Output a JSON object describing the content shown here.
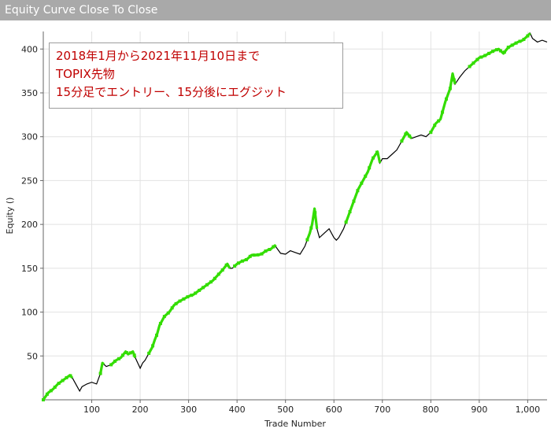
{
  "window": {
    "title": "Equity Curve Close To Close"
  },
  "chart_data": {
    "type": "line",
    "title": "",
    "xlabel": "Trade Number",
    "ylabel": "Equity ()",
    "xlim": [
      0,
      1040
    ],
    "ylim": [
      0,
      420
    ],
    "x_ticks": [
      100,
      200,
      300,
      400,
      500,
      600,
      700,
      800,
      900,
      1000
    ],
    "x_tick_labels": [
      "100",
      "200",
      "300",
      "400",
      "500",
      "600",
      "700",
      "800",
      "900",
      "1,000"
    ],
    "y_ticks": [
      50,
      100,
      150,
      200,
      250,
      300,
      350,
      400
    ],
    "y_tick_labels": [
      "50",
      "100",
      "150",
      "200",
      "250",
      "300",
      "350",
      "400"
    ],
    "grid": true,
    "series_color": "#000000",
    "highlight_color": "#33dd00",
    "series": [
      {
        "values": [
          [
            0,
            0
          ],
          [
            10,
            8
          ],
          [
            20,
            12
          ],
          [
            30,
            18
          ],
          [
            40,
            22
          ],
          [
            55,
            28
          ],
          [
            60,
            25
          ],
          [
            65,
            20
          ],
          [
            70,
            15
          ],
          [
            75,
            10
          ],
          [
            80,
            15
          ],
          [
            90,
            18
          ],
          [
            100,
            20
          ],
          [
            110,
            18
          ],
          [
            118,
            30
          ],
          [
            122,
            42
          ],
          [
            130,
            38
          ],
          [
            140,
            40
          ],
          [
            150,
            45
          ],
          [
            160,
            48
          ],
          [
            170,
            55
          ],
          [
            175,
            52
          ],
          [
            185,
            55
          ],
          [
            190,
            48
          ],
          [
            195,
            42
          ],
          [
            200,
            36
          ],
          [
            205,
            42
          ],
          [
            210,
            45
          ],
          [
            220,
            55
          ],
          [
            225,
            60
          ],
          [
            230,
            68
          ],
          [
            235,
            75
          ],
          [
            240,
            85
          ],
          [
            245,
            90
          ],
          [
            250,
            95
          ],
          [
            260,
            100
          ],
          [
            270,
            108
          ],
          [
            280,
            112
          ],
          [
            290,
            115
          ],
          [
            300,
            118
          ],
          [
            310,
            120
          ],
          [
            320,
            124
          ],
          [
            330,
            128
          ],
          [
            340,
            132
          ],
          [
            350,
            136
          ],
          [
            360,
            142
          ],
          [
            370,
            148
          ],
          [
            380,
            155
          ],
          [
            385,
            150
          ],
          [
            390,
            150
          ],
          [
            400,
            155
          ],
          [
            410,
            158
          ],
          [
            420,
            160
          ],
          [
            430,
            165
          ],
          [
            440,
            165
          ],
          [
            450,
            166
          ],
          [
            460,
            170
          ],
          [
            470,
            172
          ],
          [
            478,
            176
          ],
          [
            490,
            167
          ],
          [
            500,
            166
          ],
          [
            510,
            170
          ],
          [
            520,
            168
          ],
          [
            530,
            166
          ],
          [
            540,
            175
          ],
          [
            550,
            190
          ],
          [
            555,
            200
          ],
          [
            560,
            218
          ],
          [
            565,
            195
          ],
          [
            570,
            185
          ],
          [
            580,
            190
          ],
          [
            590,
            195
          ],
          [
            600,
            185
          ],
          [
            605,
            182
          ],
          [
            610,
            185
          ],
          [
            620,
            195
          ],
          [
            630,
            210
          ],
          [
            640,
            225
          ],
          [
            650,
            240
          ],
          [
            660,
            250
          ],
          [
            670,
            260
          ],
          [
            680,
            275
          ],
          [
            690,
            283
          ],
          [
            695,
            270
          ],
          [
            700,
            275
          ],
          [
            710,
            275
          ],
          [
            720,
            280
          ],
          [
            730,
            285
          ],
          [
            740,
            295
          ],
          [
            750,
            305
          ],
          [
            760,
            298
          ],
          [
            770,
            300
          ],
          [
            780,
            302
          ],
          [
            790,
            300
          ],
          [
            800,
            305
          ],
          [
            810,
            315
          ],
          [
            820,
            320
          ],
          [
            830,
            340
          ],
          [
            840,
            355
          ],
          [
            845,
            372
          ],
          [
            850,
            360
          ],
          [
            860,
            368
          ],
          [
            870,
            375
          ],
          [
            880,
            380
          ],
          [
            890,
            385
          ],
          [
            900,
            390
          ],
          [
            910,
            392
          ],
          [
            920,
            395
          ],
          [
            930,
            398
          ],
          [
            940,
            400
          ],
          [
            950,
            395
          ],
          [
            960,
            402
          ],
          [
            970,
            405
          ],
          [
            980,
            408
          ],
          [
            990,
            410
          ],
          [
            1000,
            415
          ],
          [
            1005,
            418
          ],
          [
            1010,
            412
          ],
          [
            1020,
            408
          ],
          [
            1030,
            410
          ],
          [
            1040,
            408
          ]
        ]
      }
    ],
    "highlight_ranges": [
      [
        0,
        60
      ],
      [
        118,
        125
      ],
      [
        140,
        190
      ],
      [
        218,
        385
      ],
      [
        395,
        480
      ],
      [
        545,
        565
      ],
      [
        625,
        695
      ],
      [
        740,
        760
      ],
      [
        800,
        850
      ],
      [
        880,
        1005
      ]
    ],
    "annotation_lines": [
      "2018年1月から2021年11月10日まで",
      "TOPIX先物",
      "15分足でエントリー、15分後にエグジット"
    ]
  }
}
